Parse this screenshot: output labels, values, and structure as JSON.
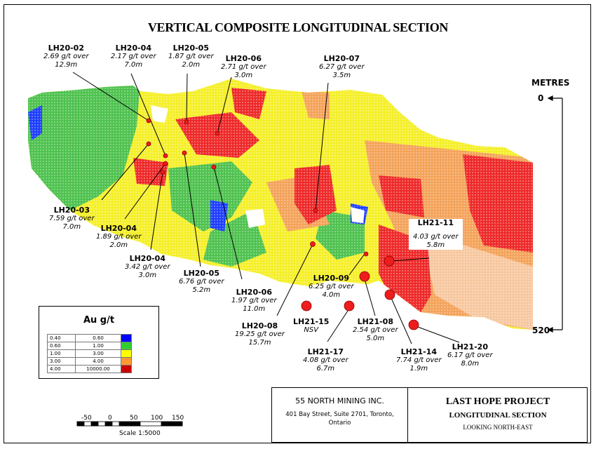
{
  "title": "VERTICAL COMPOSITE LONGITUDINAL SECTION",
  "scale_labels": {
    "top": "METRES",
    "zero": "0",
    "bottom": "520"
  },
  "holes": [
    {
      "name": "LH20-02",
      "grade": "2.69 g/t over",
      "length": "12.9m"
    },
    {
      "name": "LH20-04",
      "grade": "2.17 g/t over",
      "length": "7.0m"
    },
    {
      "name": "LH20-05",
      "grade": "1.87 g/t over",
      "length": "2.0m"
    },
    {
      "name": "LH20-06",
      "grade": "2.71 g/t over",
      "length": "3.0m"
    },
    {
      "name": "LH20-07",
      "grade": "6.27 g/t over",
      "length": "3.5m"
    },
    {
      "name": "LH20-03",
      "grade": "7.59 g/t over",
      "length": "7.0m"
    },
    {
      "name": "LH20-04",
      "grade": "1.89 g/t over",
      "length": "2.0m"
    },
    {
      "name": "LH20-04",
      "grade": "3.42 g/t over",
      "length": "3.0m"
    },
    {
      "name": "LH20-05",
      "grade": "6.76 g/t over",
      "length": "5.2m"
    },
    {
      "name": "LH20-06",
      "grade": "1.97 g/t over",
      "length": "11.0m"
    },
    {
      "name": "LH20-08",
      "grade": "19.25 g/t over",
      "length": "15.7m"
    },
    {
      "name": "LH20-09",
      "grade": "6.25 g/t over",
      "length": "4.0m"
    },
    {
      "name": "LH21-15",
      "grade": "NSV",
      "length": ""
    },
    {
      "name": "LH21-17",
      "grade": "4.08 g/t over",
      "length": "6.7m"
    },
    {
      "name": "LH21-08",
      "grade": "2.54 g/t over",
      "length": "5.0m"
    },
    {
      "name": "LH21-14",
      "grade": "7.74 g/t over",
      "length": "1.9m"
    },
    {
      "name": "LH21-20",
      "grade": "6.17 g/t over",
      "length": "8.0m"
    },
    {
      "name": "LH21-11",
      "grade": "4.03 g/t over",
      "length": "5.8m"
    }
  ],
  "legend": {
    "title": "Au g/t",
    "rows": [
      {
        "from": "0.40",
        "to": "0.60",
        "color": "#0000ff"
      },
      {
        "from": "0.60",
        "to": "1.00",
        "color": "#33cc33"
      },
      {
        "from": "1.00",
        "to": "3.00",
        "color": "#ffff00"
      },
      {
        "from": "3.00",
        "to": "4.00",
        "color": "#ff9933"
      },
      {
        "from": "4.00",
        "to": "10000.00",
        "color": "#cc0000"
      }
    ]
  },
  "scalebar": {
    "ticks": [
      "-50",
      "0",
      "50",
      "100",
      "150"
    ],
    "label": "Scale 1:5000"
  },
  "titleblock": {
    "company": "55 NORTH MINING INC.",
    "address1": "401 Bay Street, Suite 2701, Toronto,",
    "address2": "Ontario",
    "project": "LAST HOPE PROJECT",
    "section": "LONGITUDINAL SECTION",
    "looking": "LOOKING NORTH-EAST"
  },
  "colors": {
    "blue": "#1f3fff",
    "green": "#4fc24f",
    "yellow": "#f5ef2a",
    "orange": "#f4a35a",
    "red": "#ee2a2a",
    "pale": "#f7c8a0"
  }
}
